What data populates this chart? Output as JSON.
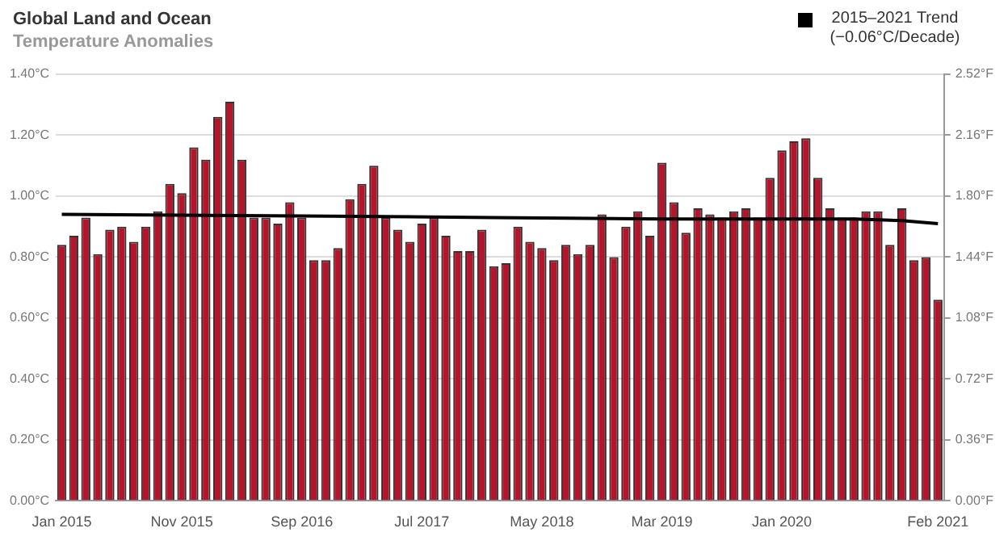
{
  "chart_data": {
    "type": "bar",
    "title": "Global Land and Ocean",
    "subtitle": "Temperature Anomalies",
    "categories": [
      "Jan 2015",
      null,
      null,
      null,
      null,
      null,
      null,
      null,
      null,
      null,
      "Nov 2015",
      null,
      null,
      null,
      null,
      null,
      null,
      null,
      null,
      null,
      "Sep 2016",
      null,
      null,
      null,
      null,
      null,
      null,
      null,
      null,
      null,
      "Jul 2017",
      null,
      null,
      null,
      null,
      null,
      null,
      null,
      null,
      null,
      "May 2018",
      null,
      null,
      null,
      null,
      null,
      null,
      null,
      null,
      null,
      "Mar 2019",
      null,
      null,
      null,
      null,
      null,
      null,
      null,
      null,
      null,
      "Jan 2020",
      null,
      null,
      null,
      null,
      null,
      null,
      null,
      null,
      null,
      null,
      null,
      null,
      "Feb 2021"
    ],
    "series": [
      {
        "color": "#b5152b",
        "values": [
          0.84,
          0.87,
          0.93,
          0.81,
          0.89,
          0.9,
          0.85,
          0.9,
          0.95,
          1.04,
          1.01,
          1.16,
          1.12,
          1.26,
          1.31,
          1.12,
          0.93,
          0.93,
          0.91,
          0.98,
          0.93,
          0.79,
          0.79,
          0.83,
          0.99,
          1.04,
          1.1,
          0.93,
          0.89,
          0.85,
          0.91,
          0.93,
          0.87,
          0.82,
          0.82,
          0.89,
          0.77,
          0.78,
          0.9,
          0.85,
          0.83,
          0.79,
          0.84,
          0.81,
          0.84,
          0.94,
          0.8,
          0.9,
          0.95,
          0.87,
          1.11,
          0.98,
          0.88,
          0.96,
          0.94,
          0.93,
          0.95,
          0.96,
          0.93,
          1.06,
          1.15,
          1.18,
          1.19,
          1.06,
          0.96,
          0.93,
          0.93,
          0.95,
          0.95,
          0.84,
          0.96,
          0.79,
          0.8,
          0.66
        ]
      },
      {
        "type": "line",
        "name": "2015–2021 Trend (−0.06°C/Decade)",
        "color": "#000000",
        "values": [
          0.94,
          null,
          null,
          null,
          null,
          null,
          null,
          null,
          null,
          null,
          null,
          null,
          null,
          null,
          null,
          null,
          null,
          null,
          null,
          null,
          0.935,
          null,
          null,
          null,
          null,
          null,
          null,
          null,
          null,
          null,
          null,
          null,
          null,
          null,
          null,
          null,
          0.93,
          null,
          null,
          null,
          null,
          null,
          null,
          null,
          null,
          null,
          null,
          null,
          null,
          null,
          0.925,
          null,
          null,
          null,
          null,
          null,
          null,
          null,
          null,
          null,
          null,
          null,
          null,
          null,
          null,
          null,
          0.925,
          null,
          null,
          null,
          0.92,
          null,
          null,
          0.91
        ]
      }
    ],
    "ylim": [
      0,
      1.4
    ],
    "yticks": [
      {
        "value": 0,
        "label": "0.00°C"
      },
      {
        "value": 0.2,
        "label": "0.20°C"
      },
      {
        "value": 0.4,
        "label": "0.40°C"
      },
      {
        "value": 0.6,
        "label": "0.60°C"
      },
      {
        "value": 0.8,
        "label": "0.80°C"
      },
      {
        "value": 1.0,
        "label": "1.00°C"
      },
      {
        "value": 1.2,
        "label": "1.20°C"
      },
      {
        "value": 1.4,
        "label": "1.40°C"
      }
    ],
    "y2lim": [
      0,
      2.52
    ],
    "y2ticks": [
      {
        "value": 0,
        "label": "0.00°F"
      },
      {
        "value": 0.36,
        "label": "0.36°F"
      },
      {
        "value": 0.72,
        "label": "0.72°F"
      },
      {
        "value": 1.08,
        "label": "1.08°F"
      },
      {
        "value": 1.44,
        "label": "1.44°F"
      },
      {
        "value": 1.8,
        "label": "1.80°F"
      },
      {
        "value": 2.16,
        "label": "2.16°F"
      },
      {
        "value": 2.52,
        "label": "2.52°F"
      }
    ],
    "grid": "y",
    "legend": "top right",
    "marker": "none",
    "line_style": "solid"
  }
}
